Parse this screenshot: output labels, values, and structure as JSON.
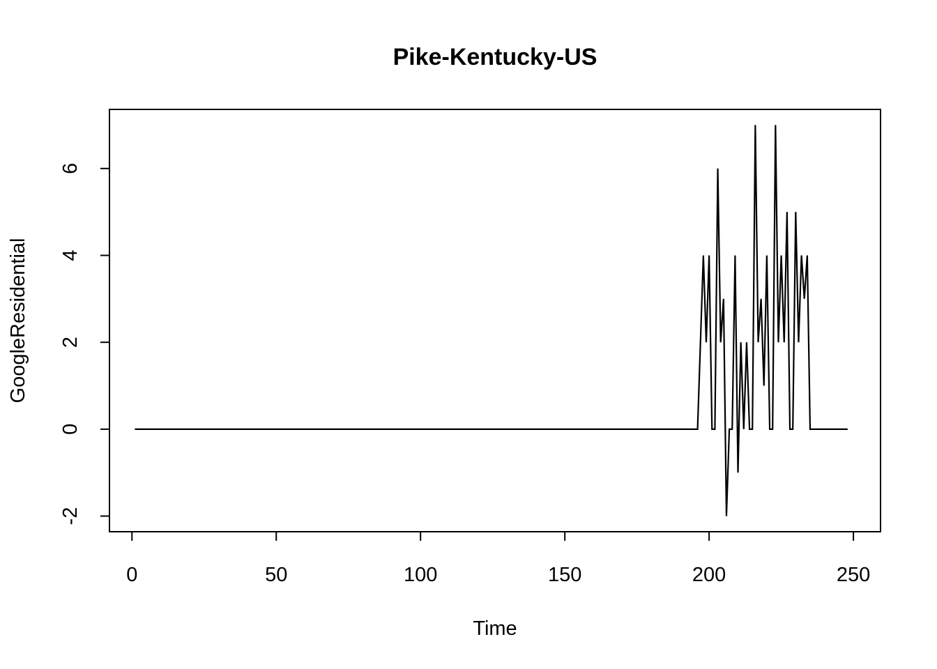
{
  "chart_data": {
    "type": "line",
    "title": "Pike-Kentucky-US",
    "xlabel": "Time",
    "ylabel": "GoogleResidential",
    "xlim": [
      -7.8,
      259.4
    ],
    "ylim": [
      -2.36,
      7.36
    ],
    "x_ticks": [
      0,
      50,
      100,
      150,
      200,
      250
    ],
    "y_ticks": [
      -2,
      0,
      2,
      4,
      6
    ],
    "x_tick_labels": [
      "0",
      "50",
      "100",
      "150",
      "200",
      "250"
    ],
    "y_tick_labels": [
      "-2",
      "0",
      "2",
      "4",
      "6"
    ],
    "grid": false,
    "legend": "none",
    "line_color": "#000000",
    "series": [
      {
        "segments": [
          {
            "x_start": 1,
            "x_end": 196,
            "value": 0
          }
        ],
        "x": [
          197,
          198,
          199,
          200,
          201,
          202,
          203,
          204,
          205,
          206,
          207,
          208,
          209,
          210,
          211,
          212,
          213,
          214,
          215,
          216,
          217,
          218,
          219,
          220,
          221,
          222,
          223,
          224,
          225,
          226,
          227,
          228,
          229,
          230,
          231,
          232,
          233,
          234,
          235,
          236,
          237,
          238,
          239,
          240,
          241,
          242,
          243,
          244,
          245,
          246,
          247,
          248
        ],
        "values": [
          2,
          4,
          2,
          4,
          0,
          0,
          6,
          2,
          3,
          -2,
          0,
          0,
          4,
          -1,
          2,
          0,
          2,
          0,
          0,
          7,
          2,
          3,
          1,
          4,
          0,
          0,
          7,
          2,
          4,
          2,
          5,
          0,
          0,
          5,
          2,
          4,
          3,
          4,
          0,
          0,
          0,
          0,
          0,
          0,
          0,
          0,
          0,
          0,
          0,
          0,
          0,
          0
        ]
      }
    ]
  }
}
